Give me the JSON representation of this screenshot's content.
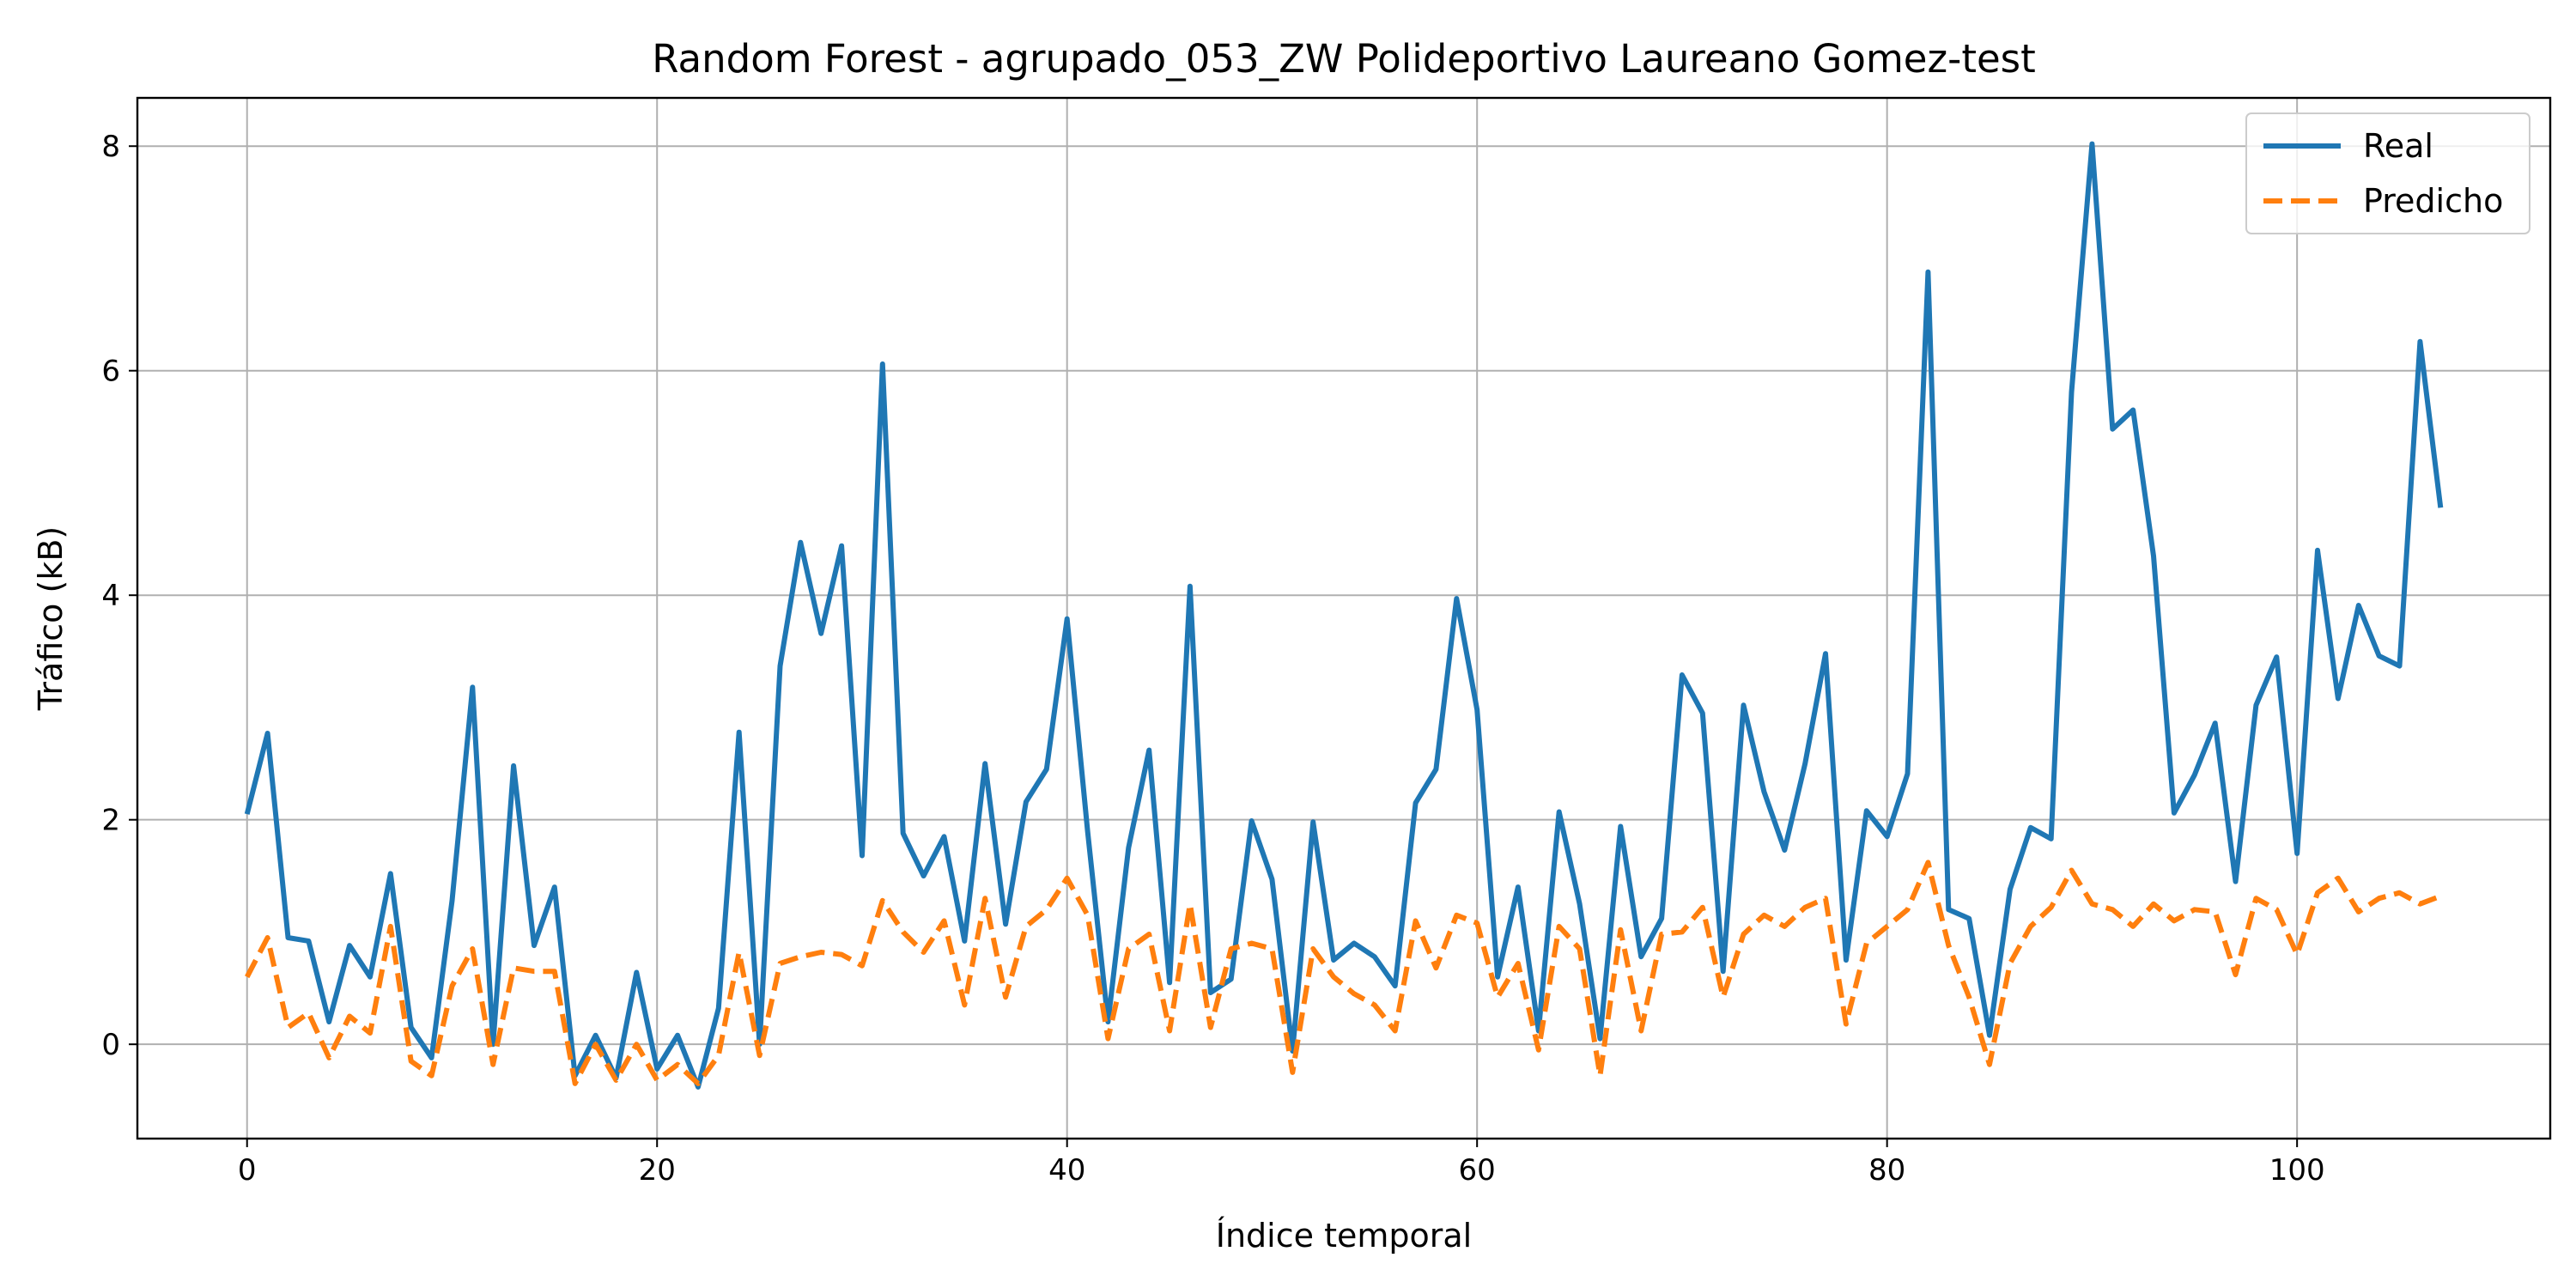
{
  "chart_data": {
    "type": "line",
    "title": "Random Forest - agrupado_053_ZW Polideportivo Laureano Gomez-test",
    "xlabel": "Índice temporal",
    "ylabel": "Tráfico (kB)",
    "xlim": [
      -5.35,
      112.35
    ],
    "ylim": [
      -0.84,
      8.43
    ],
    "xticks": [
      0,
      20,
      40,
      60,
      80,
      100
    ],
    "yticks": [
      0,
      2,
      4,
      6,
      8
    ],
    "grid": true,
    "legend_position": "top-right",
    "series": [
      {
        "name": "Real",
        "color": "#1f77b4",
        "style": "solid",
        "values": [
          2.05,
          2.77,
          0.95,
          0.92,
          0.2,
          0.88,
          0.6,
          1.52,
          0.15,
          -0.12,
          1.28,
          3.18,
          0.0,
          2.48,
          0.88,
          1.4,
          -0.28,
          0.08,
          -0.3,
          0.64,
          -0.22,
          0.08,
          -0.38,
          0.32,
          2.78,
          0.0,
          3.37,
          4.47,
          3.66,
          4.44,
          1.68,
          6.06,
          1.88,
          1.5,
          1.85,
          0.92,
          2.5,
          1.07,
          2.16,
          2.45,
          3.79,
          1.9,
          0.2,
          1.75,
          2.62,
          0.55,
          4.08,
          0.46,
          0.58,
          1.99,
          1.47,
          -0.06,
          1.98,
          0.75,
          0.9,
          0.78,
          0.52,
          2.15,
          2.45,
          3.97,
          2.98,
          0.6,
          1.4,
          0.12,
          2.07,
          1.25,
          0.05,
          1.94,
          0.78,
          1.12,
          3.29,
          2.95,
          0.65,
          3.02,
          2.25,
          1.73,
          2.5,
          3.48,
          0.75,
          2.08,
          1.85,
          2.41,
          6.88,
          1.2,
          1.12,
          0.08,
          1.38,
          1.93,
          1.83,
          5.81,
          8.02,
          5.48,
          5.65,
          4.35,
          2.06,
          2.4,
          2.86,
          1.45,
          3.02,
          3.45,
          1.7,
          4.4,
          3.08,
          3.91,
          3.46,
          3.37,
          6.26,
          4.78
        ]
      },
      {
        "name": "Predicho",
        "color": "#ff7f0e",
        "style": "dashed",
        "values": [
          0.6,
          0.95,
          0.15,
          0.28,
          -0.12,
          0.25,
          0.1,
          1.05,
          -0.15,
          -0.28,
          0.52,
          0.85,
          -0.18,
          0.68,
          0.65,
          0.65,
          -0.35,
          0.0,
          -0.32,
          0.0,
          -0.32,
          -0.18,
          -0.35,
          -0.1,
          0.82,
          -0.1,
          0.72,
          0.78,
          0.82,
          0.8,
          0.7,
          1.28,
          1.0,
          0.82,
          1.1,
          0.35,
          1.3,
          0.42,
          1.05,
          1.2,
          1.48,
          1.15,
          0.05,
          0.85,
          0.98,
          0.12,
          1.25,
          0.15,
          0.85,
          0.9,
          0.85,
          -0.25,
          0.85,
          0.6,
          0.45,
          0.35,
          0.12,
          1.1,
          0.68,
          1.15,
          1.08,
          0.42,
          0.72,
          -0.05,
          1.05,
          0.85,
          -0.28,
          1.02,
          0.12,
          0.98,
          1.0,
          1.22,
          0.42,
          0.98,
          1.15,
          1.05,
          1.22,
          1.3,
          0.18,
          0.9,
          1.05,
          1.2,
          1.62,
          0.88,
          0.42,
          -0.18,
          0.72,
          1.05,
          1.22,
          1.55,
          1.25,
          1.2,
          1.05,
          1.25,
          1.1,
          1.2,
          1.18,
          0.62,
          1.3,
          1.2,
          0.8,
          1.35,
          1.48,
          1.18,
          1.3,
          1.35,
          1.25,
          1.32
        ]
      }
    ]
  }
}
